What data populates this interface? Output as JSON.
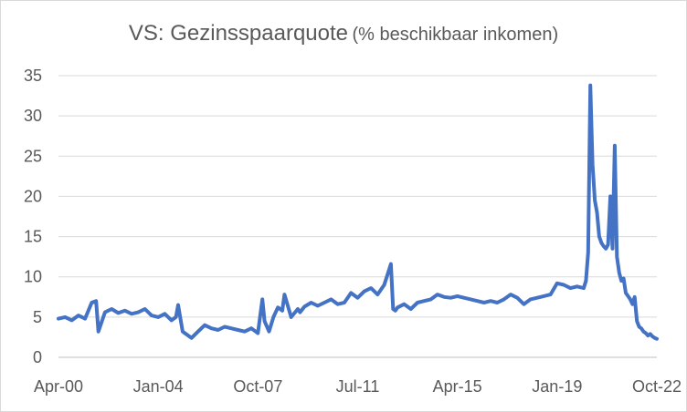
{
  "chart_data": {
    "type": "line",
    "title": "VS: Gezinsspaarquote",
    "subtitle": "(% beschikbaar inkomen)",
    "xlabel": "",
    "ylabel": "",
    "ylim": [
      0,
      35
    ],
    "yticks": [
      0,
      5,
      10,
      15,
      20,
      25,
      30,
      35
    ],
    "xticks": [
      "Apr-00",
      "Jan-04",
      "Oct-07",
      "Jul-11",
      "Apr-15",
      "Jan-19",
      "Oct-22"
    ],
    "grid": "horizontal",
    "legend": "none",
    "series": [
      {
        "color": "#4472c4",
        "x": [
          "2000-04",
          "2000-07",
          "2000-10",
          "2001-01",
          "2001-04",
          "2001-07",
          "2001-09",
          "2001-10",
          "2002-01",
          "2002-04",
          "2002-07",
          "2002-10",
          "2003-01",
          "2003-04",
          "2003-07",
          "2003-10",
          "2004-01",
          "2004-04",
          "2004-07",
          "2004-09",
          "2004-10",
          "2004-12",
          "2005-01",
          "2005-04",
          "2005-07",
          "2005-10",
          "2006-01",
          "2006-04",
          "2006-07",
          "2006-10",
          "2007-01",
          "2007-04",
          "2007-07",
          "2007-10",
          "2007-12",
          "2008-01",
          "2008-03",
          "2008-05",
          "2008-07",
          "2008-09",
          "2008-10",
          "2009-01",
          "2009-04",
          "2009-05",
          "2009-07",
          "2009-10",
          "2010-01",
          "2010-04",
          "2010-07",
          "2010-10",
          "2011-01",
          "2011-04",
          "2011-07",
          "2011-10",
          "2012-01",
          "2012-04",
          "2012-07",
          "2012-10",
          "2012-11",
          "2012-12",
          "2013-01",
          "2013-04",
          "2013-07",
          "2013-10",
          "2014-01",
          "2014-04",
          "2014-07",
          "2014-10",
          "2015-01",
          "2015-04",
          "2015-07",
          "2015-10",
          "2016-01",
          "2016-04",
          "2016-07",
          "2016-10",
          "2017-01",
          "2017-04",
          "2017-07",
          "2017-10",
          "2018-01",
          "2018-04",
          "2018-07",
          "2018-10",
          "2019-01",
          "2019-04",
          "2019-07",
          "2019-10",
          "2020-01",
          "2020-02",
          "2020-03",
          "2020-04",
          "2020-05",
          "2020-06",
          "2020-07",
          "2020-08",
          "2020-09",
          "2020-10",
          "2020-11",
          "2020-12",
          "2021-01",
          "2021-02",
          "2021-03",
          "2021-04",
          "2021-05",
          "2021-06",
          "2021-07",
          "2021-08",
          "2021-09",
          "2021-10",
          "2021-11",
          "2021-12",
          "2022-01",
          "2022-02",
          "2022-03",
          "2022-04",
          "2022-05",
          "2022-06",
          "2022-07",
          "2022-08",
          "2022-09",
          "2022-10"
        ],
        "values": [
          4.8,
          5.0,
          4.6,
          5.2,
          4.8,
          6.8,
          7.0,
          3.2,
          5.6,
          6.0,
          5.5,
          5.8,
          5.4,
          5.6,
          6.0,
          5.2,
          5.0,
          5.4,
          4.6,
          5.0,
          6.5,
          3.2,
          3.0,
          2.4,
          3.2,
          4.0,
          3.6,
          3.4,
          3.8,
          3.6,
          3.4,
          3.2,
          3.6,
          3.0,
          7.2,
          4.5,
          3.2,
          5.0,
          6.2,
          5.8,
          7.8,
          5.0,
          6.0,
          5.6,
          6.3,
          6.8,
          6.4,
          6.8,
          7.2,
          6.6,
          6.8,
          8.0,
          7.4,
          8.2,
          8.6,
          7.8,
          9.0,
          11.6,
          6.0,
          5.8,
          6.2,
          6.6,
          6.0,
          6.8,
          7.0,
          7.2,
          7.8,
          7.5,
          7.4,
          7.6,
          7.4,
          7.2,
          7.0,
          6.8,
          7.0,
          6.8,
          7.2,
          7.8,
          7.4,
          6.6,
          7.2,
          7.4,
          7.6,
          7.8,
          9.2,
          9.0,
          8.6,
          8.8,
          8.6,
          9.5,
          13.0,
          33.8,
          24.0,
          19.5,
          18.0,
          15.0,
          14.2,
          13.8,
          13.5,
          14.0,
          20.0,
          13.5,
          26.3,
          12.5,
          10.5,
          9.5,
          9.8,
          8.0,
          7.6,
          7.2,
          6.6,
          7.5,
          4.5,
          3.8,
          3.6,
          3.2,
          3.0,
          2.7,
          2.9,
          2.6,
          2.4,
          2.3
        ]
      }
    ]
  }
}
